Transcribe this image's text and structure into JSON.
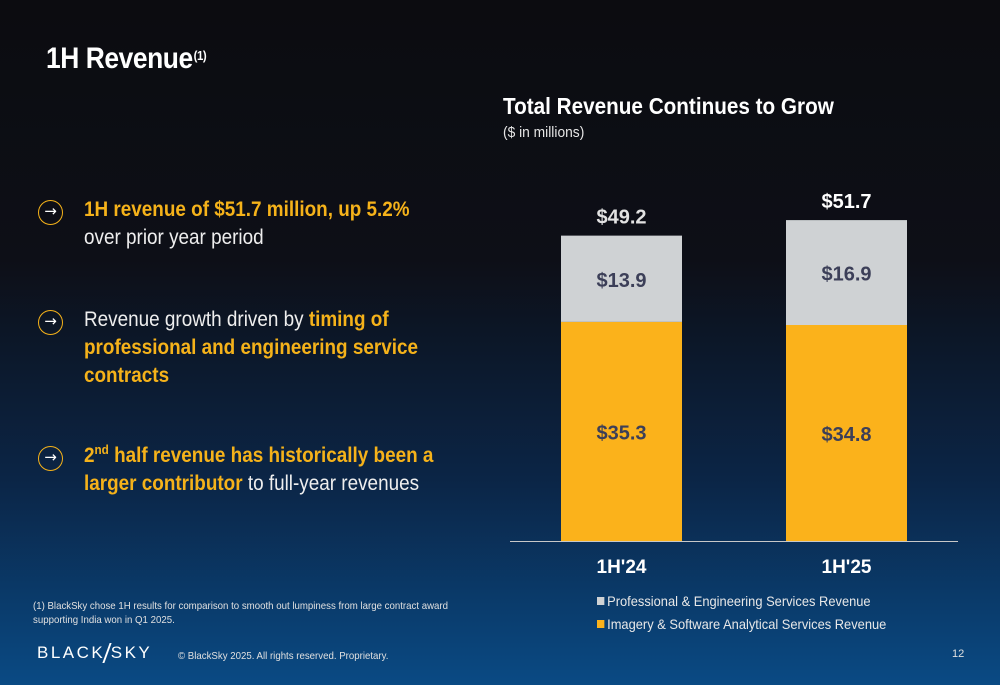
{
  "slide": {
    "title": "1H Revenue",
    "title_footnote_mark": "(1)",
    "page_number": "12"
  },
  "bullets": [
    {
      "icon": "arrow-right-icon",
      "highlight": "1H revenue of $51.7 million, up 5.2%",
      "text_after": " over prior year period"
    },
    {
      "icon": "arrow-right-icon",
      "text_before": "Revenue growth driven by ",
      "highlight": "timing of professional and engineering service contracts"
    },
    {
      "icon": "arrow-right-icon",
      "highlight_prefix": "2",
      "highlight_sup": "nd",
      "highlight": " half revenue has historically been a larger contributor",
      "text_after": " to full-year revenues"
    }
  ],
  "chart_data": {
    "type": "bar",
    "stacked": true,
    "title": "Total Revenue Continues to Grow",
    "subtitle": "($ in millions)",
    "categories": [
      "1H'24",
      "1H'25"
    ],
    "series": [
      {
        "name": "Imagery & Software Analytical Services Revenue",
        "values": [
          35.3,
          34.8
        ],
        "labels": [
          "$35.3",
          "$34.8"
        ],
        "color": "#fbb21b",
        "label_color": "#3c3f58"
      },
      {
        "name": "Professional & Engineering Services Revenue",
        "values": [
          13.9,
          16.9
        ],
        "labels": [
          "$13.9",
          "$16.9"
        ],
        "color": "#cfd2d4",
        "label_color": "#3c3f58"
      }
    ],
    "totals": [
      49.2,
      51.7
    ],
    "total_labels": [
      "$49.2",
      "$51.7"
    ],
    "total_label_colors": [
      "#e2e2e2",
      "#ffffff"
    ],
    "ylim": [
      0,
      58
    ],
    "legend": {
      "position": "bottom",
      "order": [
        "Professional & Engineering Services Revenue",
        "Imagery & Software Analytical Services Revenue"
      ]
    }
  },
  "legend_items": [
    {
      "label": "Professional & Engineering Services Revenue",
      "color": "#cfd2d4"
    },
    {
      "label": "Imagery & Software Analytical Services Revenue",
      "color": "#fbb21b"
    }
  ],
  "footer": {
    "footnote": "(1)  BlackSky chose 1H results for comparison to smooth out lumpiness from large contract award supporting India won in Q1 2025.",
    "logo_left": "BLACK",
    "logo_right": "SKY",
    "copyright": "© BlackSky 2025. All rights reserved. Proprietary."
  }
}
